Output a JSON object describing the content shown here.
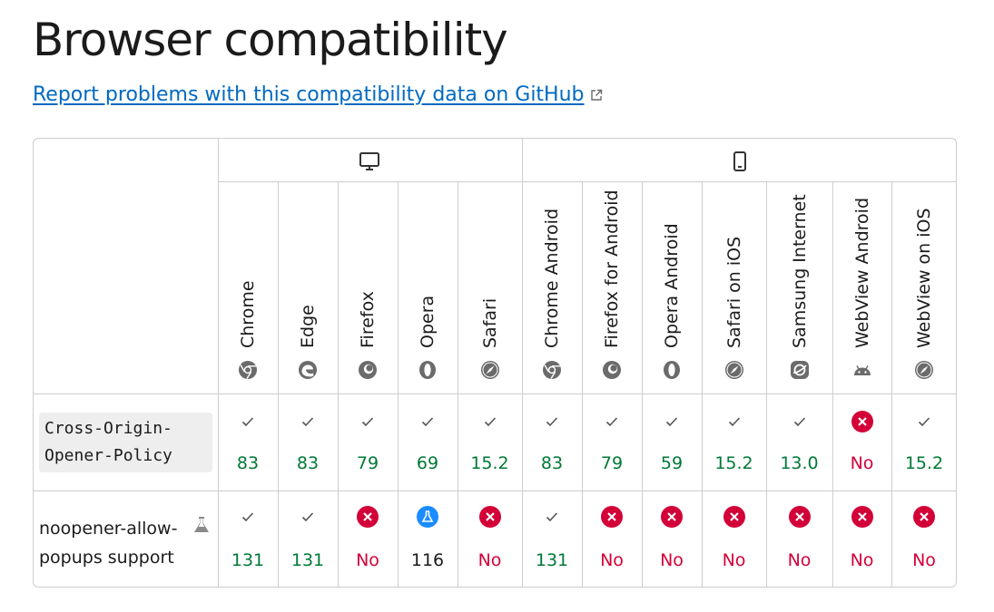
{
  "page": {
    "title": "Browser compatibility",
    "report_link": "Report problems with this compatibility data on GitHub"
  },
  "platforms": [
    {
      "name": "desktop",
      "icon": "desktop-icon"
    },
    {
      "name": "mobile",
      "icon": "mobile-icon"
    }
  ],
  "browsers": [
    {
      "name": "Chrome",
      "icon": "chrome-icon"
    },
    {
      "name": "Edge",
      "icon": "edge-icon"
    },
    {
      "name": "Firefox",
      "icon": "firefox-icon"
    },
    {
      "name": "Opera",
      "icon": "opera-icon"
    },
    {
      "name": "Safari",
      "icon": "safari-icon"
    },
    {
      "name": "Chrome Android",
      "icon": "chrome-icon"
    },
    {
      "name": "Firefox for Android",
      "icon": "firefox-icon"
    },
    {
      "name": "Opera Android",
      "icon": "opera-icon"
    },
    {
      "name": "Safari on iOS",
      "icon": "safari-icon"
    },
    {
      "name": "Samsung Internet",
      "icon": "samsung-internet-icon"
    },
    {
      "name": "WebView Android",
      "icon": "android-icon"
    },
    {
      "name": "WebView on iOS",
      "icon": "safari-icon"
    }
  ],
  "features": [
    {
      "name": "Cross-Origin-\nOpener-Policy",
      "code": true,
      "experimental": false,
      "support": [
        {
          "status": "yes",
          "text": "83"
        },
        {
          "status": "yes",
          "text": "83"
        },
        {
          "status": "yes",
          "text": "79"
        },
        {
          "status": "yes",
          "text": "69"
        },
        {
          "status": "yes",
          "text": "15.2"
        },
        {
          "status": "yes",
          "text": "83"
        },
        {
          "status": "yes",
          "text": "79"
        },
        {
          "status": "yes",
          "text": "59"
        },
        {
          "status": "yes",
          "text": "15.2"
        },
        {
          "status": "yes",
          "text": "13.0"
        },
        {
          "status": "no",
          "text": "No"
        },
        {
          "status": "yes",
          "text": "15.2"
        }
      ]
    },
    {
      "name": "noopener-allow-\npopups support",
      "code": false,
      "experimental": true,
      "support": [
        {
          "status": "yes",
          "text": "131"
        },
        {
          "status": "yes",
          "text": "131"
        },
        {
          "status": "no",
          "text": "No"
        },
        {
          "status": "preview",
          "text": "116"
        },
        {
          "status": "no",
          "text": "No"
        },
        {
          "status": "yes",
          "text": "131"
        },
        {
          "status": "no",
          "text": "No"
        },
        {
          "status": "no",
          "text": "No"
        },
        {
          "status": "no",
          "text": "No"
        },
        {
          "status": "no",
          "text": "No"
        },
        {
          "status": "no",
          "text": "No"
        },
        {
          "status": "no",
          "text": "No"
        }
      ]
    }
  ],
  "colors": {
    "supported": "#007936",
    "unsupported": "#d30038",
    "preview": "#1a8cff",
    "link": "#0069c2",
    "border": "#cdcdcd"
  }
}
